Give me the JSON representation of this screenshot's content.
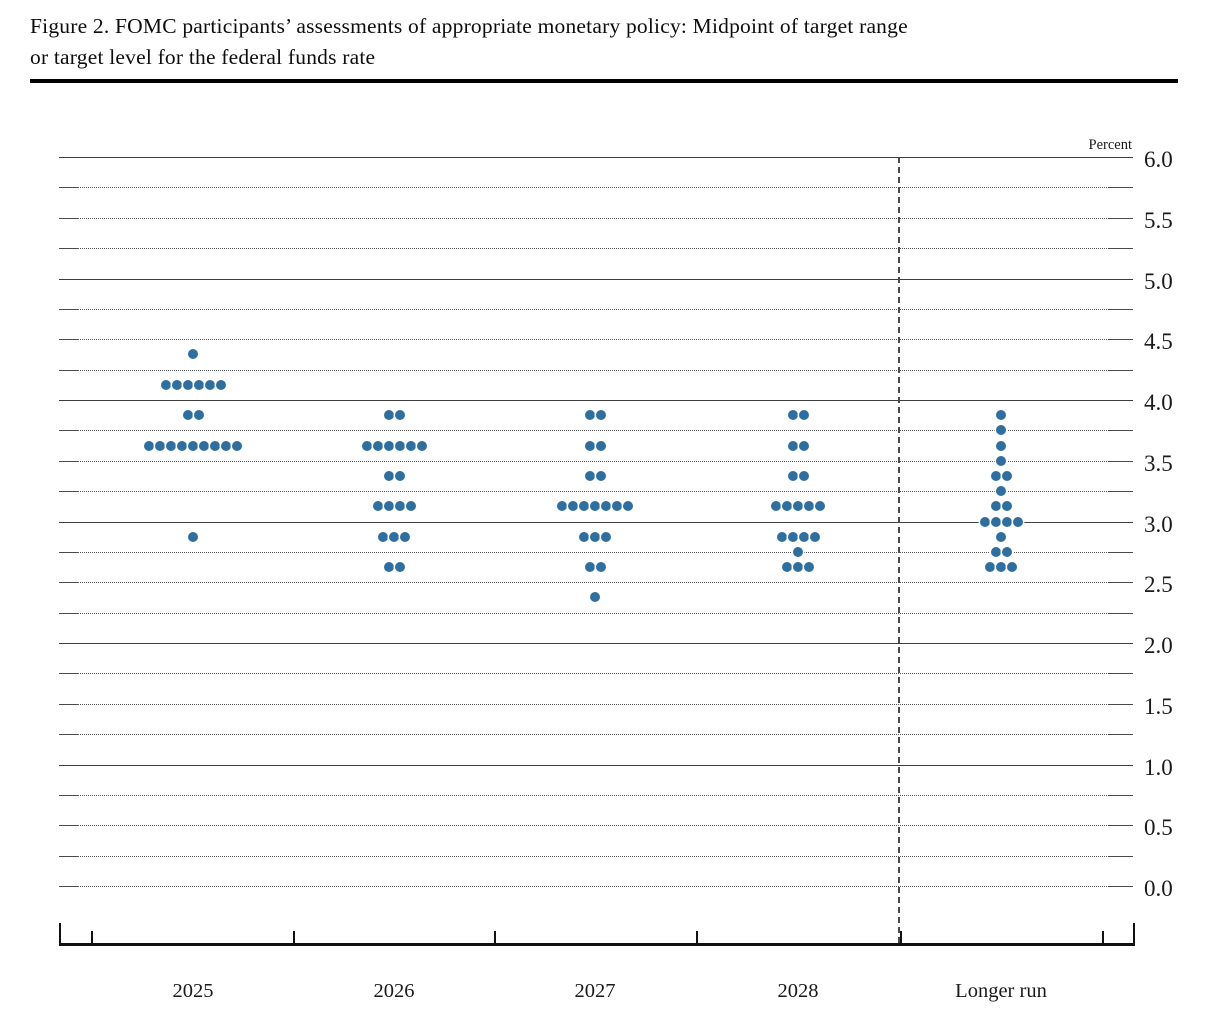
{
  "header": {
    "title_line1": "Figure 2. FOMC participants’ assessments of appropriate monetary policy: Midpoint of target range",
    "title_line2": "or target level for the federal funds rate"
  },
  "chart": {
    "percent_label": "Percent",
    "y_tick_labels": [
      "6.0",
      "5.5",
      "5.0",
      "4.5",
      "4.0",
      "3.5",
      "3.0",
      "2.5",
      "2.0",
      "1.5",
      "1.0",
      "0.5",
      "0.0"
    ],
    "x_labels": [
      "2025",
      "2026",
      "2027",
      "2028",
      "Longer run"
    ]
  },
  "chart_data": {
    "type": "scatter",
    "subtype": "fomc-dot-plot",
    "title": "Figure 2. FOMC participants’ assessments of appropriate monetary policy: Midpoint of target range or target level for the federal funds rate",
    "ylabel": "Percent",
    "ylim": [
      0.0,
      6.0
    ],
    "y_tick_step": 0.5,
    "y_grid_step": 0.25,
    "grid": "solid lines at integer percents (1.0–6.0), dotted lines at quarter-point increments and 0.0",
    "legend_position": "none",
    "categories": [
      "2025",
      "2026",
      "2027",
      "2028",
      "Longer run"
    ],
    "dot_color": "#2f6f9f",
    "series": [
      {
        "name": "2025",
        "dots": [
          {
            "rate": 4.375,
            "count": 1
          },
          {
            "rate": 4.125,
            "count": 6
          },
          {
            "rate": 3.875,
            "count": 2
          },
          {
            "rate": 3.625,
            "count": 9
          },
          {
            "rate": 2.875,
            "count": 1
          }
        ]
      },
      {
        "name": "2026",
        "dots": [
          {
            "rate": 3.875,
            "count": 2
          },
          {
            "rate": 3.625,
            "count": 6
          },
          {
            "rate": 3.375,
            "count": 2
          },
          {
            "rate": 3.125,
            "count": 4
          },
          {
            "rate": 2.875,
            "count": 3
          },
          {
            "rate": 2.625,
            "count": 2
          }
        ]
      },
      {
        "name": "2027",
        "dots": [
          {
            "rate": 3.875,
            "count": 2
          },
          {
            "rate": 3.625,
            "count": 2
          },
          {
            "rate": 3.375,
            "count": 2
          },
          {
            "rate": 3.125,
            "count": 7
          },
          {
            "rate": 2.875,
            "count": 3
          },
          {
            "rate": 2.625,
            "count": 2
          },
          {
            "rate": 2.375,
            "count": 1
          }
        ]
      },
      {
        "name": "2028",
        "dots": [
          {
            "rate": 3.875,
            "count": 2
          },
          {
            "rate": 3.625,
            "count": 2
          },
          {
            "rate": 3.375,
            "count": 2
          },
          {
            "rate": 3.125,
            "count": 5
          },
          {
            "rate": 2.875,
            "count": 4
          },
          {
            "rate": 2.75,
            "count": 1
          },
          {
            "rate": 2.625,
            "count": 3
          }
        ]
      },
      {
        "name": "Longer run",
        "dots": [
          {
            "rate": 3.875,
            "count": 1
          },
          {
            "rate": 3.75,
            "count": 1
          },
          {
            "rate": 3.625,
            "count": 1
          },
          {
            "rate": 3.5,
            "count": 1
          },
          {
            "rate": 3.375,
            "count": 2
          },
          {
            "rate": 3.25,
            "count": 1
          },
          {
            "rate": 3.125,
            "count": 2
          },
          {
            "rate": 3.0,
            "count": 4
          },
          {
            "rate": 2.875,
            "count": 1
          },
          {
            "rate": 2.75,
            "count": 2
          },
          {
            "rate": 2.625,
            "count": 3
          }
        ]
      }
    ]
  }
}
